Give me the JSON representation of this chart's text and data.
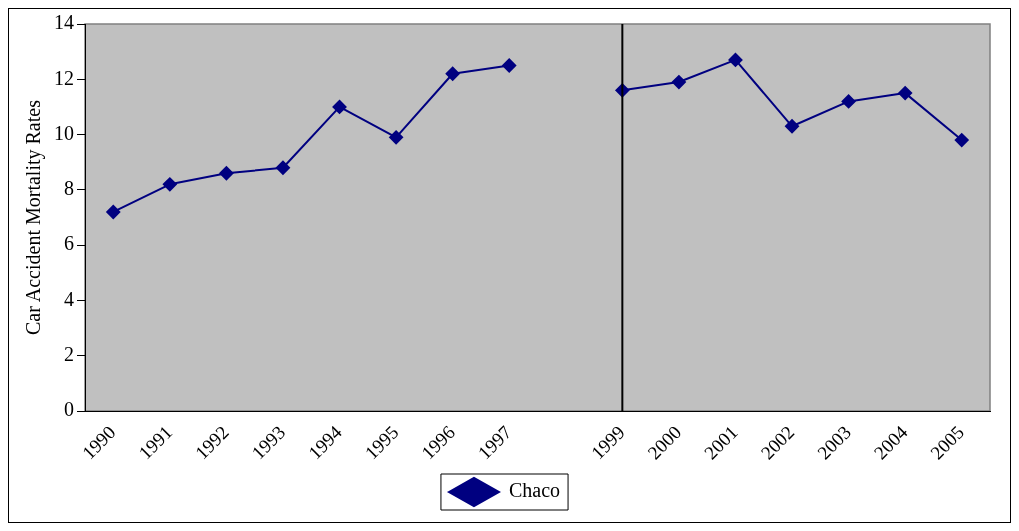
{
  "chart_data": {
    "type": "line",
    "ylabel": "Car Accident Mortality Rates",
    "categories": [
      "1990",
      "1991",
      "1992",
      "1993",
      "1994",
      "1995",
      "1996",
      "1997",
      null,
      "1999",
      "2000",
      "2001",
      "2002",
      "2003",
      "2004",
      "2005"
    ],
    "series": [
      {
        "name": "Chaco",
        "color": "#000080",
        "values": [
          7.2,
          8.2,
          8.6,
          8.8,
          11.0,
          9.9,
          12.2,
          12.5,
          null,
          11.6,
          11.9,
          12.7,
          10.3,
          11.2,
          11.5,
          9.8
        ]
      }
    ],
    "ylim": [
      0,
      14
    ],
    "yticks": [
      0,
      2,
      4,
      6,
      8,
      10,
      12,
      14
    ],
    "grid": false,
    "legend": "bottom",
    "marker": "diamond",
    "line_style": "solid",
    "ref_lines": [
      {
        "axis": "x",
        "value": "1999",
        "color": "#000000"
      }
    ]
  }
}
